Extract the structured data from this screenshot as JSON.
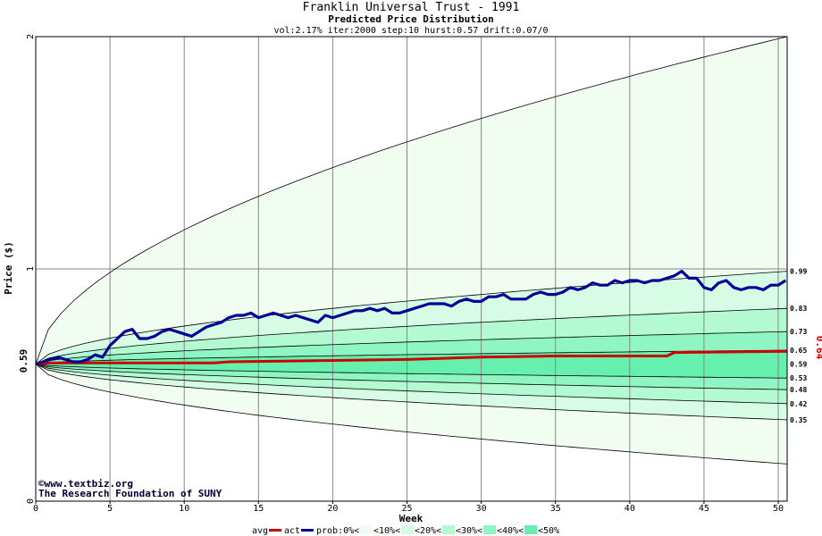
{
  "chart_data": {
    "type": "area",
    "title": "Franklin Universal Trust - 1991",
    "subtitle": "Predicted Price Distribution",
    "params": "vol:2.17% iter:2000 step:10 hurst:0.57 drift:0.07/0",
    "xlabel": "Week",
    "ylabel": "Price ($)",
    "xlim": [
      0,
      50.6
    ],
    "ylim": [
      0,
      2
    ],
    "x_ticks": [
      0,
      5,
      10,
      15,
      20,
      25,
      30,
      35,
      40,
      45,
      50
    ],
    "y_ticks": [
      0,
      1,
      2
    ],
    "start_value_label": "0.59",
    "current_value_label": "0.64",
    "right_labels": [
      "0.99",
      "0.83",
      "0.73",
      "0.65",
      "0.59",
      "0.53",
      "0.48",
      "0.42",
      "0.35"
    ],
    "bands_end": [
      [
        0.16,
        0.99,
        2.0
      ],
      [
        0.35,
        0.83,
        0.99
      ],
      [
        0.42,
        0.73,
        0.83
      ],
      [
        0.48,
        0.65,
        0.73
      ],
      [
        0.53,
        0.59,
        0.65
      ]
    ],
    "band_colors": [
      "#f0fdf0",
      "#d6fce5",
      "#b3fad3",
      "#8ff5c2",
      "#66f0ad"
    ],
    "start_price": 0.59,
    "avg_series": {
      "name": "avg",
      "color": "#cc0000",
      "x": [
        0,
        1,
        12,
        13,
        25,
        30,
        35,
        42.5,
        43,
        50.6
      ],
      "y": [
        0.59,
        0.595,
        0.595,
        0.6,
        0.61,
        0.62,
        0.625,
        0.625,
        0.64,
        0.645
      ]
    },
    "act_series": {
      "name": "act",
      "color": "#000099",
      "x": [
        0,
        0.5,
        1,
        1.5,
        2,
        2.5,
        3,
        3.5,
        4,
        4.5,
        5,
        5.5,
        6,
        6.5,
        7,
        7.5,
        8,
        8.5,
        9,
        9.5,
        10,
        10.5,
        11,
        11.5,
        12,
        12.5,
        13,
        13.5,
        14,
        14.5,
        15,
        15.5,
        16,
        16.5,
        17,
        17.5,
        18,
        18.5,
        19,
        19.5,
        20,
        20.5,
        21,
        21.5,
        22,
        22.5,
        23,
        23.5,
        24,
        24.5,
        25,
        25.5,
        26,
        26.5,
        27,
        27.5,
        28,
        28.5,
        29,
        29.5,
        30,
        30.5,
        31,
        31.5,
        32,
        32.5,
        33,
        33.5,
        34,
        34.5,
        35,
        35.5,
        36,
        36.5,
        37,
        37.5,
        38,
        38.5,
        39,
        39.5,
        40,
        40.5,
        41,
        41.5,
        42,
        42.5,
        43,
        43.5,
        44,
        44.5,
        45,
        45.5,
        46,
        46.5,
        47,
        47.5,
        48,
        48.5,
        49,
        49.5,
        50,
        50.5
      ],
      "y": [
        0.59,
        0.6,
        0.61,
        0.62,
        0.61,
        0.6,
        0.6,
        0.61,
        0.63,
        0.62,
        0.67,
        0.7,
        0.73,
        0.74,
        0.7,
        0.7,
        0.71,
        0.73,
        0.74,
        0.73,
        0.72,
        0.71,
        0.73,
        0.75,
        0.76,
        0.77,
        0.79,
        0.8,
        0.8,
        0.81,
        0.79,
        0.8,
        0.81,
        0.8,
        0.79,
        0.8,
        0.79,
        0.78,
        0.77,
        0.8,
        0.79,
        0.8,
        0.81,
        0.82,
        0.82,
        0.83,
        0.82,
        0.83,
        0.81,
        0.81,
        0.82,
        0.83,
        0.84,
        0.85,
        0.85,
        0.85,
        0.84,
        0.86,
        0.87,
        0.86,
        0.86,
        0.88,
        0.88,
        0.89,
        0.87,
        0.87,
        0.87,
        0.89,
        0.9,
        0.89,
        0.89,
        0.9,
        0.92,
        0.91,
        0.92,
        0.94,
        0.93,
        0.93,
        0.95,
        0.94,
        0.95,
        0.95,
        0.94,
        0.95,
        0.95,
        0.96,
        0.97,
        0.99,
        0.96,
        0.96,
        0.92,
        0.91,
        0.94,
        0.95,
        0.92,
        0.91,
        0.92,
        0.92,
        0.91,
        0.93,
        0.93,
        0.95
      ]
    },
    "legend": {
      "avg": "avg",
      "act": "act",
      "prob": "prob:0%<",
      "items": [
        "<10%<",
        "<20%<",
        "<30%<",
        "<40%<",
        "<50%"
      ]
    },
    "credits": {
      "line1": "©www.textbiz.org",
      "line2": "The Research Foundation of SUNY"
    },
    "grid": true
  }
}
